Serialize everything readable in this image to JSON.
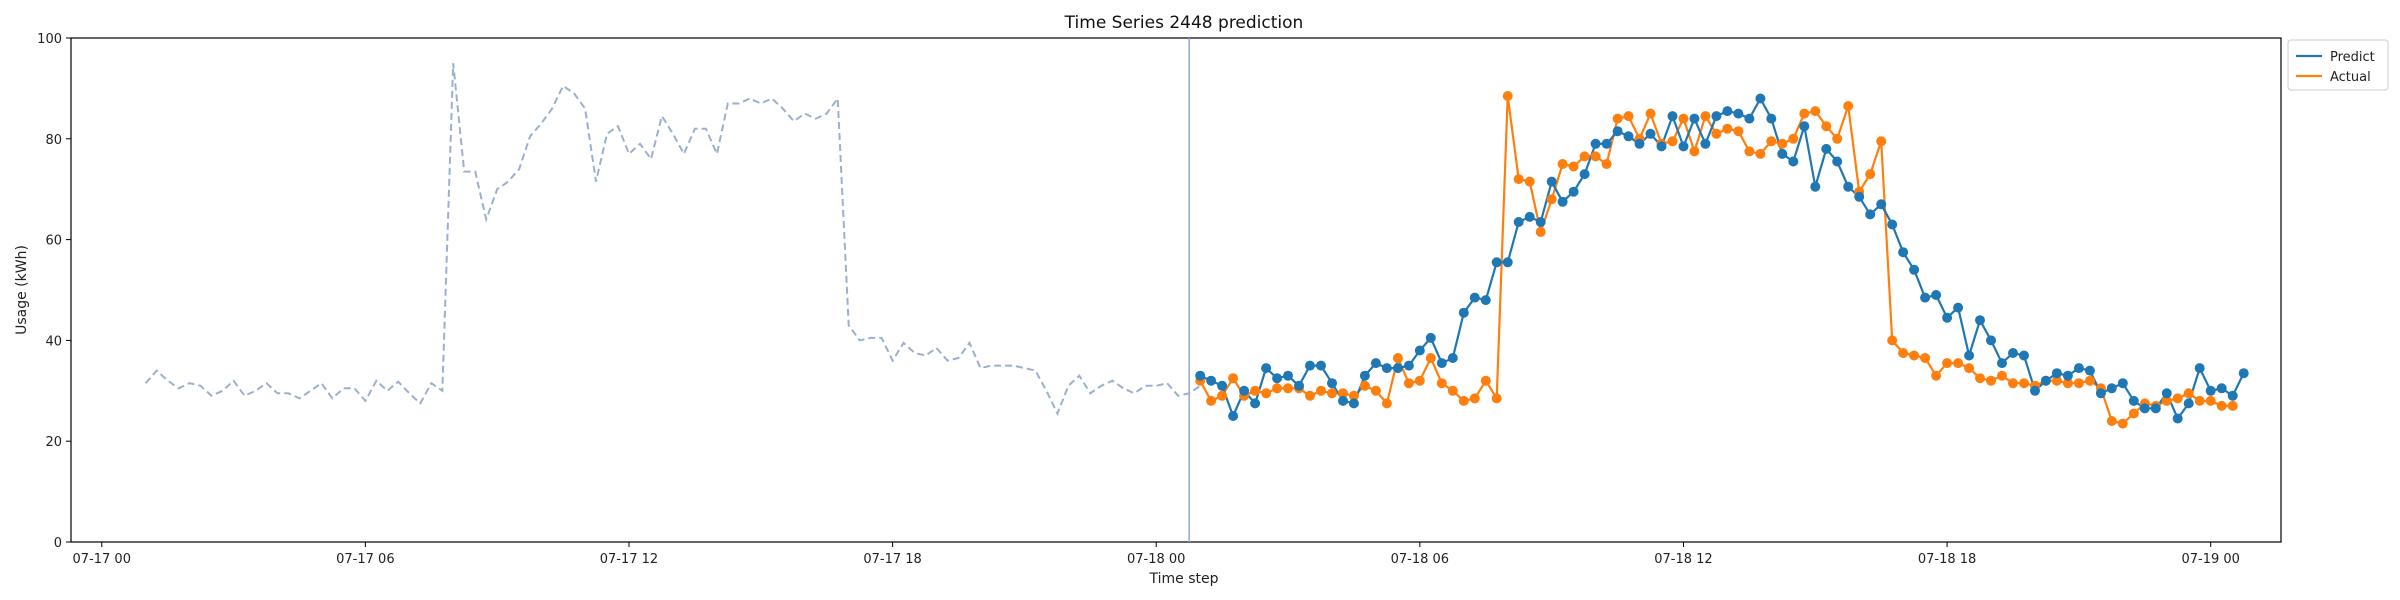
{
  "chart_data": {
    "type": "line",
    "title": "Time Series 2448 prediction",
    "xlabel": "Time step",
    "ylabel": "Usage (kWh)",
    "ylim": [
      0,
      100
    ],
    "yticks": [
      "0",
      "20",
      "40",
      "60",
      "80",
      "100"
    ],
    "xticks": [
      "07-17 00",
      "07-17 06",
      "07-17 12",
      "07-17 18",
      "07-18 00",
      "07-18 06",
      "07-18 12",
      "07-18 18",
      "07-19 00"
    ],
    "xlim": [
      -0.7,
      49.6
    ],
    "forecast_start": 24.75,
    "legend_position": "top-right",
    "history": {
      "color": "#9ab0d0",
      "style": "dashed",
      "x_start": 1.0,
      "x_step": 0.25,
      "values": [
        31.5,
        34,
        32,
        30.5,
        31.5,
        31,
        29,
        30,
        32,
        29,
        30,
        31.5,
        29.5,
        29.5,
        28.5,
        30,
        31.5,
        28.5,
        30.5,
        30.5,
        28,
        32,
        30,
        31.8,
        29.5,
        27.5,
        31.5,
        30,
        95,
        73.5,
        73.5,
        64,
        70,
        71.5,
        74,
        80.5,
        83,
        86,
        90.5,
        89,
        86,
        71.5,
        81,
        82.5,
        77,
        79,
        76,
        84.5,
        81,
        77,
        82,
        82,
        77,
        87,
        87,
        88,
        87,
        88,
        86,
        83.5,
        85,
        84,
        85,
        88,
        43,
        40,
        40.5,
        40.5,
        36,
        39.5,
        37.5,
        37,
        38.5,
        36,
        36.5,
        39.5,
        34.5,
        35,
        35,
        35,
        34.5,
        34,
        30,
        25.5,
        31,
        33,
        29.5,
        31,
        32,
        30.5,
        29.5,
        31,
        31,
        31.5,
        29,
        29.5,
        31
      ]
    },
    "series": [
      {
        "name": "Predict",
        "color": "#1f77b4",
        "x_start": 25.0,
        "x_step": 0.25,
        "values": [
          33,
          32,
          31,
          25,
          30,
          27.5,
          34.5,
          32.5,
          33,
          31,
          35,
          35,
          31.5,
          28,
          27.5,
          33,
          35.5,
          34.5,
          34.5,
          35,
          38,
          40.5,
          35.5,
          36.5,
          45.5,
          48.5,
          48,
          55.5,
          55.5,
          63.5,
          64.5,
          63.5,
          71.5,
          67.5,
          69.5,
          73,
          79,
          79,
          81.5,
          80.5,
          79,
          81,
          78.5,
          84.5,
          78.5,
          84,
          79,
          84.5,
          85.5,
          85,
          84,
          88,
          84,
          77,
          75.5,
          82.5,
          70.5,
          78,
          75.5,
          70.5,
          68.5,
          65,
          67,
          63,
          57.5,
          54,
          48.5,
          49,
          44.5,
          46.5,
          37,
          44,
          40,
          35.5,
          37.5,
          37,
          30,
          32,
          33.5,
          33,
          34.5,
          34,
          29.5,
          30.5,
          31.5,
          28,
          26.5,
          26.5,
          29.5,
          24.5,
          27.5,
          34.5,
          30,
          30.5,
          29,
          33.5
        ]
      },
      {
        "name": "Actual",
        "color": "#ff7f0e",
        "x_start": 25.0,
        "x_step": 0.25,
        "values": [
          32,
          28,
          29,
          32.5,
          29,
          30,
          29.5,
          30.5,
          30.5,
          30.5,
          29,
          30,
          29.5,
          29.5,
          29,
          31,
          30,
          27.5,
          36.5,
          31.5,
          32,
          36.5,
          31.5,
          30,
          28,
          28.5,
          32,
          28.5,
          88.5,
          72,
          71.5,
          61.5,
          68,
          75,
          74.5,
          76.5,
          76.5,
          75,
          84,
          84.5,
          80,
          85,
          79,
          79.5,
          84,
          77.5,
          84.5,
          81,
          82,
          81.5,
          77.5,
          77,
          79.5,
          79,
          80,
          85,
          85.5,
          82.5,
          80,
          86.5,
          69.5,
          73,
          79.5,
          40,
          37.5,
          37,
          36.5,
          33,
          35.5,
          35.5,
          34.5,
          32.5,
          32,
          33,
          31.5,
          31.5,
          31,
          32,
          32,
          31.5,
          31.5,
          32,
          30.5,
          24,
          23.5,
          25.5,
          27.5,
          27,
          28,
          28.5,
          29.5,
          28,
          28,
          27,
          27
        ]
      }
    ]
  }
}
